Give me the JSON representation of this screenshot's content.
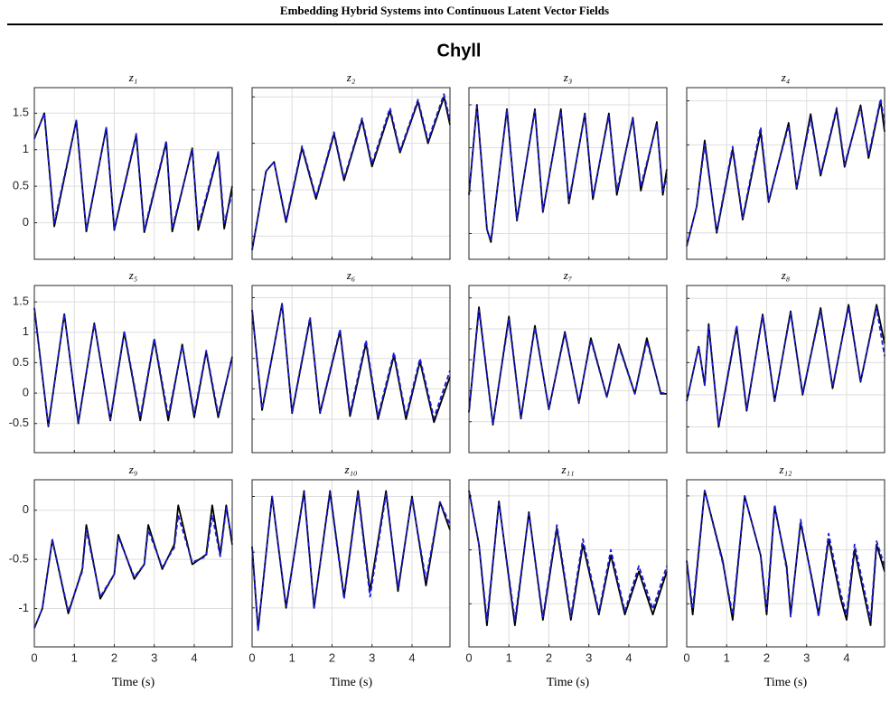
{
  "header": "Embedding Hybrid Systems into Continuous Latent Vector Fields",
  "figure_title": "Chyll",
  "chart_data": [
    {
      "type": "line",
      "title": "z₁",
      "xlim": [
        0,
        4.95
      ],
      "xticks": [
        0,
        1,
        2,
        3,
        4
      ],
      "xtick_labels": false,
      "ylim": [
        -0.5,
        1.85
      ],
      "yticks": [
        0,
        0.5,
        1,
        1.5
      ],
      "ytick_labels": true,
      "grid": true,
      "x": [
        0,
        0.25,
        0.5,
        1.05,
        1.3,
        1.8,
        2.0,
        2.55,
        2.75,
        3.3,
        3.45,
        3.95,
        4.1,
        4.6,
        4.75,
        4.95
      ],
      "series": [
        {
          "color": "#000000",
          "style": "solid",
          "values": [
            1.15,
            1.5,
            -0.05,
            1.4,
            -0.12,
            1.3,
            -0.1,
            1.2,
            -0.13,
            1.1,
            -0.12,
            1.02,
            -0.1,
            0.95,
            -0.08,
            0.5
          ]
        },
        {
          "color": "#1a1ad6",
          "style": "dashed",
          "values": [
            1.15,
            1.5,
            0.0,
            1.4,
            -0.1,
            1.3,
            -0.08,
            1.22,
            -0.1,
            1.12,
            -0.08,
            1.0,
            -0.05,
            0.97,
            0.0,
            0.4
          ]
        }
      ]
    },
    {
      "type": "line",
      "title": "z₂",
      "xlim": [
        0,
        4.95
      ],
      "xticks": [
        0,
        1,
        2,
        3,
        4
      ],
      "xtick_labels": false,
      "ylim": [
        -0.25,
        1.6
      ],
      "yticks": [
        0,
        0.5,
        1,
        1.5
      ],
      "ytick_labels": false,
      "grid": true,
      "x": [
        0,
        0.35,
        0.55,
        0.85,
        1.25,
        1.6,
        2.05,
        2.3,
        2.75,
        3.0,
        3.45,
        3.7,
        4.15,
        4.4,
        4.8,
        4.95
      ],
      "series": [
        {
          "color": "#000000",
          "style": "solid",
          "values": [
            -0.15,
            0.7,
            0.8,
            0.15,
            0.95,
            0.4,
            1.1,
            0.6,
            1.25,
            0.75,
            1.35,
            0.9,
            1.45,
            1.0,
            1.5,
            1.2
          ]
        },
        {
          "color": "#1a1ad6",
          "style": "dashed",
          "values": [
            -0.15,
            0.7,
            0.8,
            0.17,
            0.97,
            0.42,
            1.12,
            0.62,
            1.27,
            0.78,
            1.38,
            0.92,
            1.47,
            1.03,
            1.53,
            1.25
          ]
        }
      ]
    },
    {
      "type": "line",
      "title": "z₃",
      "xlim": [
        0,
        4.95
      ],
      "xticks": [
        0,
        1,
        2,
        3,
        4
      ],
      "xtick_labels": false,
      "ylim": [
        -0.3,
        1.7
      ],
      "yticks": [
        0,
        0.5,
        1,
        1.5
      ],
      "ytick_labels": false,
      "grid": true,
      "x": [
        0,
        0.2,
        0.45,
        0.55,
        0.95,
        1.2,
        1.65,
        1.85,
        2.3,
        2.5,
        2.9,
        3.1,
        3.5,
        3.7,
        4.1,
        4.3,
        4.7,
        4.85,
        4.95
      ],
      "series": [
        {
          "color": "#000000",
          "style": "solid",
          "values": [
            0.45,
            1.5,
            0.05,
            -0.1,
            1.45,
            0.15,
            1.45,
            0.25,
            1.45,
            0.35,
            1.4,
            0.4,
            1.4,
            0.45,
            1.35,
            0.5,
            1.3,
            0.45,
            0.75
          ]
        },
        {
          "color": "#1a1ad6",
          "style": "dashed",
          "values": [
            0.45,
            1.48,
            0.05,
            -0.08,
            1.43,
            0.17,
            1.43,
            0.27,
            1.42,
            0.38,
            1.38,
            0.43,
            1.37,
            0.5,
            1.33,
            0.55,
            1.28,
            0.5,
            0.65
          ]
        }
      ]
    },
    {
      "type": "line",
      "title": "z₄",
      "xlim": [
        0,
        4.95
      ],
      "xticks": [
        0,
        1,
        2,
        3,
        4
      ],
      "xtick_labels": false,
      "ylim": [
        -0.3,
        1.65
      ],
      "yticks": [
        0,
        0.5,
        1,
        1.5
      ],
      "ytick_labels": false,
      "grid": true,
      "x": [
        0,
        0.25,
        0.45,
        0.75,
        1.15,
        1.4,
        1.85,
        2.05,
        2.55,
        2.75,
        3.1,
        3.35,
        3.75,
        3.95,
        4.35,
        4.55,
        4.85,
        4.95
      ],
      "series": [
        {
          "color": "#000000",
          "style": "solid",
          "values": [
            -0.15,
            0.3,
            1.05,
            0.0,
            0.95,
            0.15,
            1.15,
            0.35,
            1.25,
            0.5,
            1.35,
            0.65,
            1.4,
            0.75,
            1.45,
            0.85,
            1.5,
            1.15
          ]
        },
        {
          "color": "#1a1ad6",
          "style": "dashed",
          "values": [
            -0.15,
            0.3,
            1.0,
            0.02,
            0.98,
            0.17,
            1.2,
            0.37,
            1.22,
            0.52,
            1.3,
            0.67,
            1.42,
            0.78,
            1.42,
            0.88,
            1.52,
            1.25
          ]
        }
      ]
    },
    {
      "type": "line",
      "title": "z₅",
      "xlim": [
        0,
        4.95
      ],
      "xticks": [
        0,
        1,
        2,
        3,
        4
      ],
      "xtick_labels": false,
      "ylim": [
        -0.98,
        1.77
      ],
      "yticks": [
        -0.5,
        0,
        0.5,
        1,
        1.5
      ],
      "ytick_labels": true,
      "grid": true,
      "x": [
        0,
        0.35,
        0.75,
        1.1,
        1.5,
        1.9,
        2.25,
        2.65,
        3.0,
        3.35,
        3.7,
        4.0,
        4.3,
        4.6,
        4.95
      ],
      "series": [
        {
          "color": "#000000",
          "style": "solid",
          "values": [
            1.4,
            -0.55,
            1.3,
            -0.5,
            1.15,
            -0.45,
            1.0,
            -0.45,
            0.88,
            -0.45,
            0.8,
            -0.4,
            0.68,
            -0.4,
            0.6
          ]
        },
        {
          "color": "#1a1ad6",
          "style": "dashed",
          "values": [
            1.4,
            -0.53,
            1.3,
            -0.48,
            1.15,
            -0.43,
            1.02,
            -0.4,
            0.9,
            -0.38,
            0.78,
            -0.35,
            0.7,
            -0.35,
            0.58
          ]
        }
      ]
    },
    {
      "type": "line",
      "title": "z₆",
      "xlim": [
        0,
        4.95
      ],
      "xticks": [
        0,
        1,
        2,
        3,
        4
      ],
      "xtick_labels": false,
      "ylim": [
        -1.05,
        1.7
      ],
      "yticks": [
        -0.5,
        0,
        0.5,
        1,
        1.5
      ],
      "ytick_labels": false,
      "grid": true,
      "x": [
        0,
        0.25,
        0.75,
        1.0,
        1.45,
        1.7,
        2.2,
        2.45,
        2.85,
        3.15,
        3.55,
        3.85,
        4.2,
        4.55,
        4.95
      ],
      "series": [
        {
          "color": "#000000",
          "style": "solid",
          "values": [
            1.3,
            -0.35,
            1.4,
            -0.4,
            1.15,
            -0.4,
            0.95,
            -0.45,
            0.75,
            -0.5,
            0.55,
            -0.5,
            0.45,
            -0.55,
            0.2
          ]
        },
        {
          "color": "#1a1ad6",
          "style": "dashed",
          "values": [
            1.3,
            -0.33,
            1.4,
            -0.38,
            1.18,
            -0.38,
            0.98,
            -0.4,
            0.8,
            -0.45,
            0.6,
            -0.45,
            0.5,
            -0.48,
            0.3
          ]
        }
      ]
    },
    {
      "type": "line",
      "title": "z₇",
      "xlim": [
        0,
        4.95
      ],
      "xticks": [
        0,
        1,
        2,
        3,
        4
      ],
      "xtick_labels": false,
      "ylim": [
        -1.0,
        1.7
      ],
      "yticks": [
        -0.5,
        0,
        0.5,
        1,
        1.5
      ],
      "ytick_labels": false,
      "grid": true,
      "x": [
        0,
        0.25,
        0.6,
        1.0,
        1.3,
        1.65,
        2.0,
        2.4,
        2.75,
        3.05,
        3.45,
        3.75,
        4.15,
        4.45,
        4.8,
        4.95
      ],
      "series": [
        {
          "color": "#000000",
          "style": "solid",
          "values": [
            -0.35,
            1.35,
            -0.55,
            1.2,
            -0.45,
            1.05,
            -0.3,
            0.95,
            -0.2,
            0.85,
            -0.1,
            0.75,
            -0.05,
            0.85,
            -0.05,
            -0.05
          ]
        },
        {
          "color": "#1a1ad6",
          "style": "dashed",
          "values": [
            -0.35,
            1.3,
            -0.53,
            1.15,
            -0.43,
            1.02,
            -0.28,
            0.92,
            -0.18,
            0.82,
            -0.1,
            0.72,
            -0.05,
            0.8,
            -0.03,
            -0.05
          ]
        }
      ]
    },
    {
      "type": "line",
      "title": "z₈",
      "xlim": [
        0,
        4.95
      ],
      "xticks": [
        0,
        1,
        2,
        3,
        4
      ],
      "xtick_labels": false,
      "ylim": [
        -0.9,
        1.7
      ],
      "yticks": [
        -0.5,
        0,
        0.5,
        1,
        1.5
      ],
      "ytick_labels": false,
      "grid": true,
      "x": [
        0,
        0.3,
        0.45,
        0.55,
        0.8,
        1.25,
        1.5,
        1.9,
        2.2,
        2.6,
        2.9,
        3.35,
        3.65,
        4.05,
        4.35,
        4.75,
        4.95
      ],
      "series": [
        {
          "color": "#000000",
          "style": "solid",
          "values": [
            -0.1,
            0.75,
            0.15,
            1.1,
            -0.5,
            1.05,
            -0.25,
            1.25,
            -0.1,
            1.3,
            0.0,
            1.35,
            0.1,
            1.4,
            0.2,
            1.4,
            0.8
          ]
        },
        {
          "color": "#1a1ad6",
          "style": "dashed",
          "values": [
            -0.1,
            0.75,
            0.15,
            1.05,
            -0.48,
            1.08,
            -0.22,
            1.22,
            -0.08,
            1.27,
            0.03,
            1.3,
            0.13,
            1.36,
            0.22,
            1.35,
            0.6
          ]
        }
      ]
    },
    {
      "type": "line",
      "title": "z₉",
      "xlabel": "Time (s)",
      "xlim": [
        0,
        4.95
      ],
      "xticks": [
        0,
        1,
        2,
        3,
        4
      ],
      "xtick_labels": true,
      "ylim": [
        -1.39,
        0.31
      ],
      "yticks": [
        -1,
        -0.5,
        0
      ],
      "ytick_labels": true,
      "grid": true,
      "x": [
        0,
        0.2,
        0.45,
        0.85,
        1.2,
        1.3,
        1.65,
        2.0,
        2.1,
        2.5,
        2.75,
        2.85,
        3.2,
        3.5,
        3.6,
        3.95,
        4.3,
        4.45,
        4.65,
        4.8,
        4.95
      ],
      "series": [
        {
          "color": "#000000",
          "style": "solid",
          "values": [
            -1.2,
            -1.0,
            -0.3,
            -1.05,
            -0.6,
            -0.15,
            -0.9,
            -0.65,
            -0.25,
            -0.7,
            -0.55,
            -0.15,
            -0.6,
            -0.35,
            0.05,
            -0.55,
            -0.45,
            0.05,
            -0.45,
            0.05,
            -0.35
          ]
        },
        {
          "color": "#1a1ad6",
          "style": "dashed",
          "values": [
            -1.2,
            -1.0,
            -0.3,
            -1.03,
            -0.62,
            -0.2,
            -0.88,
            -0.65,
            -0.27,
            -0.68,
            -0.55,
            -0.2,
            -0.58,
            -0.38,
            -0.05,
            -0.53,
            -0.47,
            -0.05,
            -0.47,
            0.02,
            -0.3
          ]
        }
      ]
    },
    {
      "type": "line",
      "title": "z₁₀",
      "xlabel": "Time (s)",
      "xlim": [
        0,
        4.95
      ],
      "xticks": [
        0,
        1,
        2,
        3,
        4
      ],
      "xtick_labels": true,
      "ylim": [
        -1.35,
        0.15
      ],
      "yticks": [
        -1,
        -0.5,
        0
      ],
      "ytick_labels": false,
      "grid": true,
      "x": [
        0,
        0.15,
        0.5,
        0.85,
        1.3,
        1.55,
        1.95,
        2.3,
        2.65,
        2.95,
        3.35,
        3.65,
        4.0,
        4.35,
        4.7,
        4.95
      ],
      "series": [
        {
          "color": "#000000",
          "style": "solid",
          "values": [
            -0.45,
            -1.2,
            0.0,
            -1.0,
            0.05,
            -1.0,
            0.05,
            -0.9,
            0.05,
            -0.85,
            0.05,
            -0.85,
            0.0,
            -0.8,
            -0.05,
            -0.3
          ]
        },
        {
          "color": "#1a1ad6",
          "style": "dashed",
          "values": [
            -0.45,
            -1.2,
            0.0,
            -0.98,
            0.03,
            -1.0,
            0.03,
            -0.92,
            0.03,
            -0.9,
            0.02,
            -0.82,
            -0.02,
            -0.75,
            -0.05,
            -0.25
          ]
        }
      ]
    },
    {
      "type": "line",
      "title": "z₁₁",
      "xlabel": "Time (s)",
      "xlim": [
        0,
        4.95
      ],
      "xticks": [
        0,
        1,
        2,
        3,
        4
      ],
      "xtick_labels": true,
      "ylim": [
        -1.4,
        0.15
      ],
      "yticks": [
        -1,
        -0.5,
        0
      ],
      "ytick_labels": false,
      "grid": true,
      "x": [
        0,
        0.25,
        0.45,
        0.75,
        1.15,
        1.5,
        1.85,
        2.2,
        2.55,
        2.85,
        3.25,
        3.55,
        3.9,
        4.25,
        4.6,
        4.95
      ],
      "series": [
        {
          "color": "#000000",
          "style": "solid",
          "values": [
            0.05,
            -0.45,
            -1.2,
            -0.05,
            -1.2,
            -0.15,
            -1.15,
            -0.3,
            -1.15,
            -0.45,
            -1.1,
            -0.55,
            -1.1,
            -0.7,
            -1.1,
            -0.7
          ]
        },
        {
          "color": "#1a1ad6",
          "style": "dashed",
          "values": [
            0.05,
            -0.45,
            -1.15,
            -0.07,
            -1.15,
            -0.17,
            -1.12,
            -0.27,
            -1.12,
            -0.4,
            -1.08,
            -0.5,
            -1.07,
            -0.65,
            -1.05,
            -0.65
          ]
        }
      ]
    },
    {
      "type": "line",
      "title": "z₁₂",
      "xlabel": "Time (s)",
      "xlim": [
        0,
        4.95
      ],
      "xticks": [
        0,
        1,
        2,
        3,
        4
      ],
      "xtick_labels": true,
      "ylim": [
        -1.4,
        0.15
      ],
      "yticks": [
        -1,
        -0.5,
        0
      ],
      "ytick_labels": false,
      "grid": true,
      "x": [
        0,
        0.15,
        0.45,
        0.9,
        1.15,
        1.45,
        1.85,
        2.0,
        2.2,
        2.5,
        2.6,
        2.85,
        3.15,
        3.3,
        3.55,
        3.85,
        4.0,
        4.2,
        4.6,
        4.75,
        4.95
      ],
      "series": [
        {
          "color": "#000000",
          "style": "solid",
          "values": [
            -0.6,
            -1.1,
            0.05,
            -0.6,
            -1.15,
            0.0,
            -0.55,
            -1.1,
            -0.1,
            -0.65,
            -1.1,
            -0.25,
            -0.8,
            -1.1,
            -0.4,
            -0.95,
            -1.15,
            -0.5,
            -1.2,
            -0.45,
            -0.7
          ]
        },
        {
          "color": "#1a1ad6",
          "style": "dashed",
          "values": [
            -0.6,
            -1.05,
            0.05,
            -0.62,
            -1.1,
            0.0,
            -0.55,
            -1.05,
            -0.08,
            -0.68,
            -1.12,
            -0.22,
            -0.82,
            -1.12,
            -0.35,
            -0.9,
            -1.1,
            -0.45,
            -1.15,
            -0.42,
            -0.65
          ]
        }
      ]
    }
  ]
}
